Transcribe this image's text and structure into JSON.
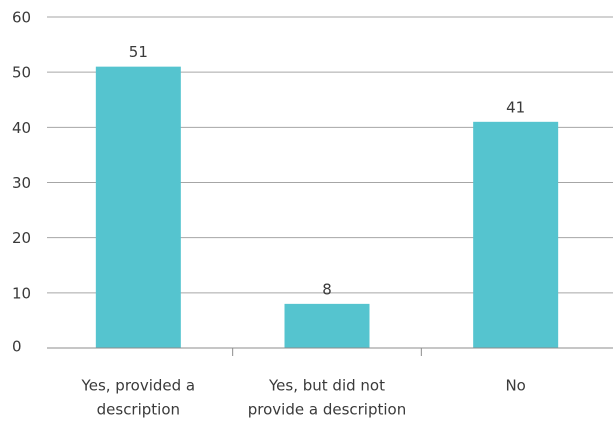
{
  "chart_data": {
    "type": "bar",
    "categories": [
      [
        "Yes, provided a",
        "description"
      ],
      [
        "Yes, but did not",
        "provide a description"
      ],
      [
        "No"
      ]
    ],
    "values": [
      51,
      8,
      41
    ],
    "data_labels": [
      "51",
      "8",
      "41"
    ],
    "ylim": [
      0,
      60
    ],
    "yticks": [
      "0",
      "10",
      "20",
      "30",
      "40",
      "50",
      "60"
    ],
    "grid": true,
    "bar_color": "#55c4cf",
    "grid_color": "#a6a6a6",
    "axis_color": "#8c8c8c"
  }
}
